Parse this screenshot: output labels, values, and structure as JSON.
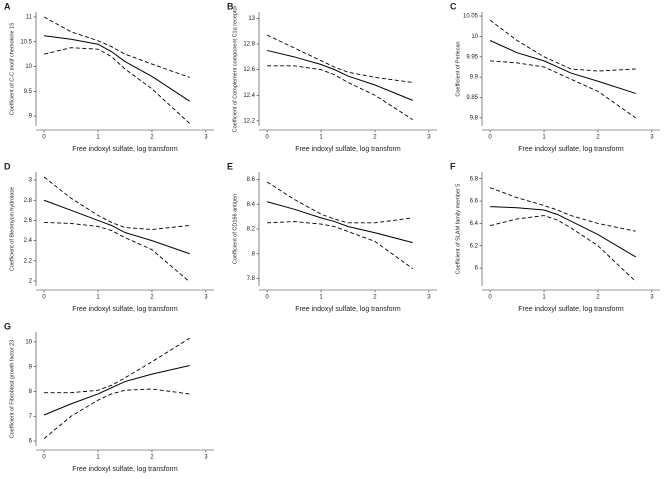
{
  "chart_data": [
    {
      "type": "line",
      "panel": "A",
      "ylabel": "Coefficient of C-C motif chemokine 15",
      "xlabel": "Free indoxyl sulfate, log transform",
      "x": [
        0,
        0.5,
        1,
        1.25,
        1.5,
        2,
        2.7
      ],
      "series": [
        {
          "color": "#000000",
          "style": "solid",
          "values": [
            10.62,
            10.55,
            10.45,
            10.3,
            10.1,
            9.8,
            9.3
          ]
        },
        {
          "color": "#000000",
          "style": "dashed",
          "values": [
            11.0,
            10.7,
            10.52,
            10.4,
            10.25,
            10.05,
            9.78
          ]
        },
        {
          "color": "#000000",
          "style": "dashed",
          "values": [
            10.25,
            10.38,
            10.35,
            10.2,
            9.95,
            9.55,
            8.85
          ]
        }
      ],
      "xlim": [
        -0.15,
        3.15
      ],
      "xticks": [
        0,
        1,
        2,
        3
      ],
      "ylim": [
        8.8,
        11.1
      ],
      "yticks": [
        9,
        9.5,
        10,
        10.5,
        11
      ]
    },
    {
      "type": "line",
      "panel": "B",
      "ylabel": "Coefficient of Complement component C1q receptor",
      "xlabel": "Free indoxyl sulfate, log transform",
      "x": [
        0,
        0.5,
        1,
        1.25,
        1.5,
        2,
        2.7
      ],
      "series": [
        {
          "color": "#000000",
          "style": "solid",
          "values": [
            12.75,
            12.7,
            12.64,
            12.6,
            12.55,
            12.48,
            12.36
          ]
        },
        {
          "color": "#000000",
          "style": "dashed",
          "values": [
            12.87,
            12.77,
            12.67,
            12.62,
            12.58,
            12.54,
            12.5
          ]
        },
        {
          "color": "#000000",
          "style": "dashed",
          "values": [
            12.63,
            12.63,
            12.6,
            12.56,
            12.5,
            12.4,
            12.21
          ]
        }
      ],
      "xlim": [
        -0.15,
        3.15
      ],
      "xticks": [
        0,
        1,
        2,
        3
      ],
      "ylim": [
        12.16,
        13.05
      ],
      "yticks": [
        12.2,
        12.4,
        12.6,
        12.8,
        13
      ]
    },
    {
      "type": "line",
      "panel": "C",
      "ylabel": "Coefficient of Perlecan",
      "xlabel": "Free indoxyl sulfate, log transform",
      "x": [
        0,
        0.5,
        1,
        1.25,
        1.5,
        2,
        2.7
      ],
      "series": [
        {
          "color": "#000000",
          "style": "solid",
          "values": [
            9.99,
            9.96,
            9.94,
            9.925,
            9.91,
            9.89,
            9.86
          ]
        },
        {
          "color": "#000000",
          "style": "dashed",
          "values": [
            10.04,
            9.99,
            9.95,
            9.935,
            9.92,
            9.915,
            9.92
          ]
        },
        {
          "color": "#000000",
          "style": "dashed",
          "values": [
            9.94,
            9.935,
            9.925,
            9.91,
            9.895,
            9.865,
            9.8
          ]
        }
      ],
      "xlim": [
        -0.15,
        3.15
      ],
      "xticks": [
        0,
        1,
        2,
        3
      ],
      "ylim": [
        9.78,
        10.06
      ],
      "yticks": [
        9.8,
        9.85,
        9.9,
        9.95,
        10,
        10.05
      ]
    },
    {
      "type": "line",
      "panel": "D",
      "ylabel": "Coefficient of Bleomycin hydrolase",
      "xlabel": "Free indoxyl sulfate, log transform",
      "x": [
        0,
        0.5,
        1,
        1.25,
        1.5,
        2,
        2.7
      ],
      "series": [
        {
          "color": "#000000",
          "style": "solid",
          "values": [
            2.8,
            2.7,
            2.6,
            2.55,
            2.48,
            2.4,
            2.27
          ]
        },
        {
          "color": "#000000",
          "style": "dashed",
          "values": [
            3.03,
            2.82,
            2.65,
            2.58,
            2.53,
            2.51,
            2.55
          ]
        },
        {
          "color": "#000000",
          "style": "dashed",
          "values": [
            2.58,
            2.57,
            2.54,
            2.5,
            2.43,
            2.31,
            1.99
          ]
        }
      ],
      "xlim": [
        -0.15,
        3.15
      ],
      "xticks": [
        0,
        1,
        2,
        3
      ],
      "ylim": [
        1.95,
        3.08
      ],
      "yticks": [
        2,
        2.2,
        2.4,
        2.6,
        2.8,
        3
      ]
    },
    {
      "type": "line",
      "panel": "E",
      "ylabel": "Coefficient of CD166 antigen",
      "xlabel": "Free indoxyl sulfate, log transform",
      "x": [
        0,
        0.5,
        1,
        1.25,
        1.5,
        2,
        2.7
      ],
      "series": [
        {
          "color": "#000000",
          "style": "solid",
          "values": [
            8.42,
            8.36,
            8.29,
            8.26,
            8.22,
            8.17,
            8.09
          ]
        },
        {
          "color": "#000000",
          "style": "dashed",
          "values": [
            8.58,
            8.44,
            8.32,
            8.28,
            8.25,
            8.25,
            8.29
          ]
        },
        {
          "color": "#000000",
          "style": "dashed",
          "values": [
            8.25,
            8.26,
            8.24,
            8.22,
            8.18,
            8.1,
            7.88
          ]
        }
      ],
      "xlim": [
        -0.15,
        3.15
      ],
      "xticks": [
        0,
        1,
        2,
        3
      ],
      "ylim": [
        7.74,
        8.66
      ],
      "yticks": [
        7.8,
        8,
        8.2,
        8.4,
        8.6
      ]
    },
    {
      "type": "line",
      "panel": "F",
      "ylabel": "Coefficient of SLAM family member 5",
      "xlabel": "Free indoxyl sulfate, log transform",
      "x": [
        0,
        0.5,
        1,
        1.25,
        1.5,
        2,
        2.7
      ],
      "series": [
        {
          "color": "#000000",
          "style": "solid",
          "values": [
            6.55,
            6.54,
            6.52,
            6.48,
            6.42,
            6.3,
            6.1
          ]
        },
        {
          "color": "#000000",
          "style": "dashed",
          "values": [
            6.72,
            6.63,
            6.56,
            6.52,
            6.47,
            6.4,
            6.33
          ]
        },
        {
          "color": "#000000",
          "style": "dashed",
          "values": [
            6.38,
            6.44,
            6.47,
            6.43,
            6.36,
            6.2,
            5.88
          ]
        }
      ],
      "xlim": [
        -0.15,
        3.15
      ],
      "xticks": [
        0,
        1,
        2,
        3
      ],
      "ylim": [
        5.84,
        6.86
      ],
      "yticks": [
        6,
        6.2,
        6.4,
        6.6,
        6.8
      ]
    },
    {
      "type": "line",
      "panel": "G",
      "ylabel": "Coefficient of Fibroblast growth factor 23",
      "xlabel": "Free indoxyl sulfate, log transform",
      "x": [
        0,
        0.5,
        1,
        1.25,
        1.5,
        2,
        2.7
      ],
      "series": [
        {
          "color": "#000000",
          "style": "solid",
          "values": [
            7.05,
            7.5,
            7.9,
            8.15,
            8.4,
            8.7,
            9.05
          ]
        },
        {
          "color": "#000000",
          "style": "dashed",
          "values": [
            7.95,
            7.95,
            8.05,
            8.25,
            8.55,
            9.2,
            10.15
          ]
        },
        {
          "color": "#000000",
          "style": "dashed",
          "values": [
            6.1,
            7.0,
            7.65,
            7.9,
            8.05,
            8.1,
            7.9
          ]
        }
      ],
      "xlim": [
        -0.15,
        3.15
      ],
      "xticks": [
        0,
        1,
        2,
        3
      ],
      "ylim": [
        5.8,
        10.4
      ],
      "yticks": [
        6,
        7,
        8,
        9,
        10
      ]
    }
  ]
}
